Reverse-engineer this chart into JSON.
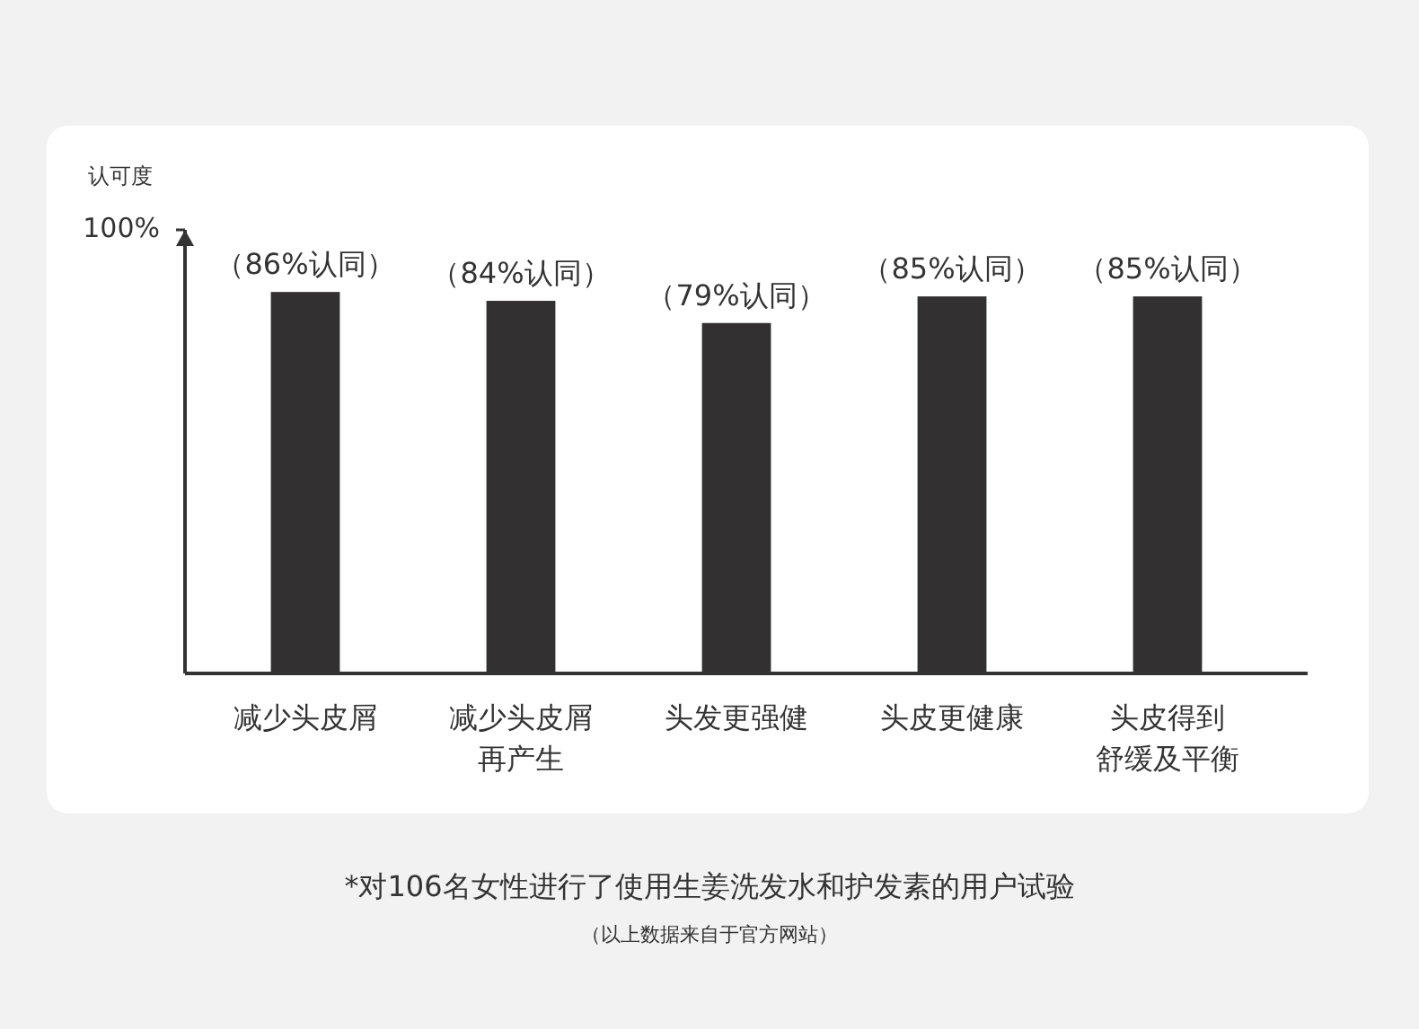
{
  "chart_data": {
    "type": "bar",
    "ylabel": "认可度",
    "categories": [
      "减少头皮屑",
      "减少头皮屑再产生",
      "头发更强健",
      "头皮更健康",
      "头皮得到舒缓及平衡"
    ],
    "values": [
      86,
      84,
      79,
      85,
      85
    ],
    "value_labels": [
      "（86%认同）",
      "（84%认同）",
      "（79%认同）",
      "（85%认同）",
      "（85%认同）"
    ],
    "color": "#333031",
    "ylim": [
      0,
      100
    ],
    "yticks": [
      {
        "value": 100,
        "label": "100%"
      }
    ],
    "grid": false,
    "annotations": [
      "*对106名女性进行了使用生姜洗发水和护发素的用户试验",
      "（以上数据来自于官方网站）"
    ]
  }
}
